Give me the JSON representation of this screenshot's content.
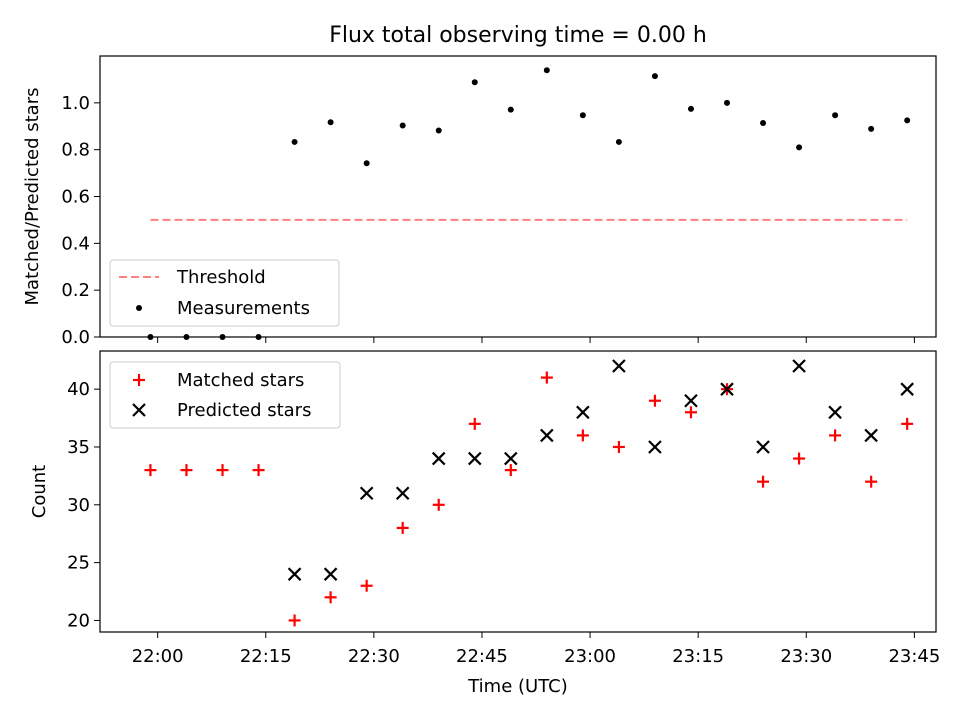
{
  "title": "Flux total observing time = 0.00 h",
  "colors": {
    "threshold": "#ff7f7f",
    "measurements": "#000000",
    "matched": "#ff0000",
    "predicted": "#000000"
  },
  "chart_data": [
    {
      "type": "scatter",
      "title": "Flux total observing time = 0.00 h",
      "xlabel": "",
      "ylabel": "Matched/Predicted stars",
      "ylim": [
        0,
        1.2
      ],
      "yticks": [
        0.0,
        0.2,
        0.4,
        0.6,
        0.8,
        1.0
      ],
      "ytick_labels": [
        "0.0",
        "0.2",
        "0.4",
        "0.6",
        "0.8",
        "1.0"
      ],
      "grid": false,
      "legend_position": "lower-left",
      "series": [
        {
          "name": "Threshold",
          "kind": "dashed-line",
          "x": [
            "21:59",
            "23:44"
          ],
          "y": [
            0.5,
            0.5
          ]
        },
        {
          "name": "Measurements",
          "kind": "dot",
          "x": [
            "21:59",
            "22:04",
            "22:09",
            "22:14",
            "22:19",
            "22:24",
            "22:29",
            "22:34",
            "22:39",
            "22:44",
            "22:49",
            "22:54",
            "22:59",
            "23:04",
            "23:09",
            "23:14",
            "23:19",
            "23:24",
            "23:29",
            "23:34",
            "23:39",
            "23:44"
          ],
          "y": [
            0.0,
            0.0,
            0.0,
            0.0,
            0.833,
            0.917,
            0.742,
            0.903,
            0.882,
            1.088,
            0.971,
            1.139,
            0.947,
            0.833,
            1.114,
            0.974,
            1.0,
            0.914,
            0.81,
            0.947,
            0.889,
            0.925
          ]
        }
      ]
    },
    {
      "type": "scatter",
      "title": "",
      "xlabel": "Time (UTC)",
      "ylabel": "Count",
      "xlim": [
        "21:52",
        "23:48"
      ],
      "ylim": [
        19,
        43.3
      ],
      "yticks": [
        20,
        25,
        30,
        35,
        40
      ],
      "ytick_labels": [
        "20",
        "25",
        "30",
        "35",
        "40"
      ],
      "xticks": [
        "22:00",
        "22:15",
        "22:30",
        "22:45",
        "23:00",
        "23:15",
        "23:30",
        "23:45"
      ],
      "grid": false,
      "legend_position": "upper-left",
      "series": [
        {
          "name": "Matched stars",
          "kind": "plus",
          "x": [
            "21:59",
            "22:04",
            "22:09",
            "22:14",
            "22:19",
            "22:24",
            "22:29",
            "22:34",
            "22:39",
            "22:44",
            "22:49",
            "22:54",
            "22:59",
            "23:04",
            "23:09",
            "23:14",
            "23:19",
            "23:24",
            "23:29",
            "23:34",
            "23:39",
            "23:44"
          ],
          "y": [
            33,
            33,
            33,
            33,
            20,
            22,
            23,
            28,
            30,
            37,
            33,
            41,
            36,
            35,
            39,
            38,
            40,
            32,
            34,
            36,
            32,
            37
          ]
        },
        {
          "name": "Predicted stars",
          "kind": "cross",
          "x": [
            "22:19",
            "22:24",
            "22:29",
            "22:34",
            "22:39",
            "22:44",
            "22:49",
            "22:54",
            "22:59",
            "23:04",
            "23:09",
            "23:14",
            "23:19",
            "23:24",
            "23:29",
            "23:34",
            "23:39",
            "23:44"
          ],
          "y": [
            24,
            24,
            31,
            31,
            34,
            34,
            34,
            36,
            38,
            42,
            35,
            39,
            40,
            35,
            42,
            38,
            36,
            40
          ]
        }
      ]
    }
  ]
}
